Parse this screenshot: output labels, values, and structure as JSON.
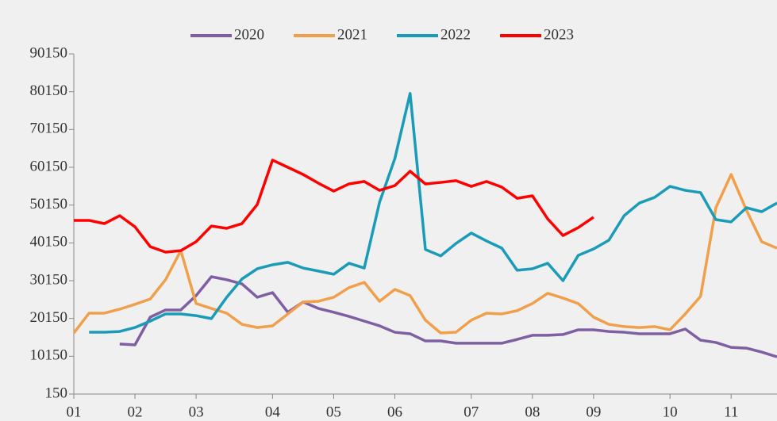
{
  "chart_data": {
    "type": "line",
    "categories": [
      "01",
      null,
      null,
      null,
      "02",
      null,
      null,
      null,
      "03",
      null,
      null,
      null,
      null,
      "04",
      null,
      null,
      null,
      "05",
      null,
      null,
      null,
      "06",
      null,
      null,
      null,
      null,
      "07",
      null,
      null,
      null,
      "08",
      null,
      null,
      null,
      "09",
      null,
      null,
      null,
      null,
      "10",
      null,
      null,
      null,
      "11",
      null,
      null,
      null
    ],
    "series": [
      {
        "name": "2020",
        "color": "#7f5fa3",
        "values": [
          null,
          null,
          null,
          13400,
          13150,
          20500,
          22400,
          22400,
          26200,
          31200,
          30400,
          29300,
          25750,
          27000,
          21800,
          24500,
          22800,
          21800,
          20700,
          19450,
          18200,
          16500,
          16100,
          14200,
          14200,
          13600,
          13600,
          13600,
          13600,
          14600,
          15700,
          15700,
          15900,
          17150,
          17150,
          16700,
          16500,
          16100,
          16100,
          16100,
          17350,
          14400,
          13800,
          12500,
          12300,
          11250,
          10000
        ]
      },
      {
        "name": "2021",
        "color": "#f0a04b",
        "values": [
          16300,
          21550,
          21550,
          22600,
          23900,
          25300,
          30400,
          38100,
          24100,
          22800,
          21550,
          18600,
          17750,
          18200,
          21350,
          24500,
          24700,
          25750,
          28300,
          29700,
          24700,
          27850,
          26200,
          19700,
          16300,
          16500,
          19700,
          21550,
          21350,
          22200,
          24100,
          26800,
          25550,
          24100,
          20500,
          18600,
          18000,
          17750,
          18000,
          17150,
          21350,
          26000,
          49450,
          58250,
          48800,
          40450,
          38750
        ]
      },
      {
        "name": "2022",
        "color": "#1a9bb8",
        "values": [
          null,
          16500,
          16500,
          16700,
          17750,
          19450,
          21350,
          21350,
          20900,
          20100,
          25750,
          30600,
          33300,
          34350,
          35000,
          33500,
          32700,
          31850,
          34750,
          33500,
          50900,
          62450,
          79700,
          38400,
          36700,
          40000,
          42750,
          40650,
          38750,
          32900,
          33300,
          34750,
          30150,
          36850,
          38550,
          40850,
          47350,
          50700,
          52200,
          55100,
          54050,
          53450,
          46300,
          45700,
          49450,
          48400,
          50700
        ]
      },
      {
        "name": "2023",
        "color": "#ff0000",
        "values": [
          46100,
          46100,
          45250,
          47350,
          44400,
          39150,
          37700,
          38100,
          40450,
          44600,
          44000,
          45250,
          50300,
          62050,
          60150,
          58250,
          55950,
          53850,
          55750,
          56400,
          54050,
          55300,
          59100,
          55750,
          56150,
          56600,
          55100,
          56400,
          54900,
          51950,
          52600,
          46500,
          42100,
          44200,
          46950,
          null,
          null,
          null,
          null,
          null,
          null,
          null,
          null,
          null,
          null,
          null,
          null
        ]
      }
    ],
    "ylim": [
      150,
      90150
    ],
    "yticks": [
      150,
      10150,
      20150,
      30150,
      40150,
      50150,
      60150,
      70150,
      80150,
      90150
    ],
    "legend": "top"
  }
}
